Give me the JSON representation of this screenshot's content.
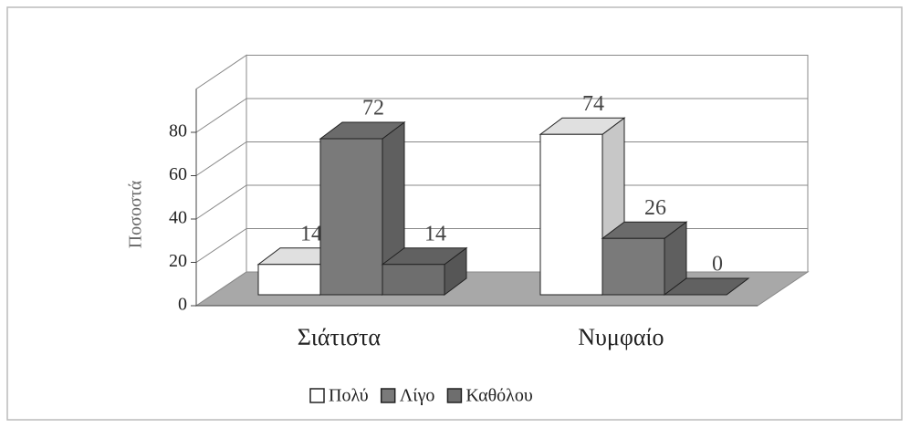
{
  "chart_data": {
    "type": "bar3d",
    "y_label": "Ποσοστά",
    "categories": [
      "Σιάτιστα",
      "Νυμφαίο"
    ],
    "series": [
      {
        "name": "Πολύ",
        "color": "#ffffff",
        "values": [
          14,
          74
        ]
      },
      {
        "name": "Λίγο",
        "color": "#7a7a7a",
        "values": [
          72,
          26
        ]
      },
      {
        "name": "Καθόλου",
        "color": "#6e6e6e",
        "values": [
          14,
          0
        ]
      }
    ],
    "ylim": [
      0,
      100
    ],
    "yticks": [
      0,
      20,
      40,
      60,
      80
    ],
    "grid": true
  }
}
